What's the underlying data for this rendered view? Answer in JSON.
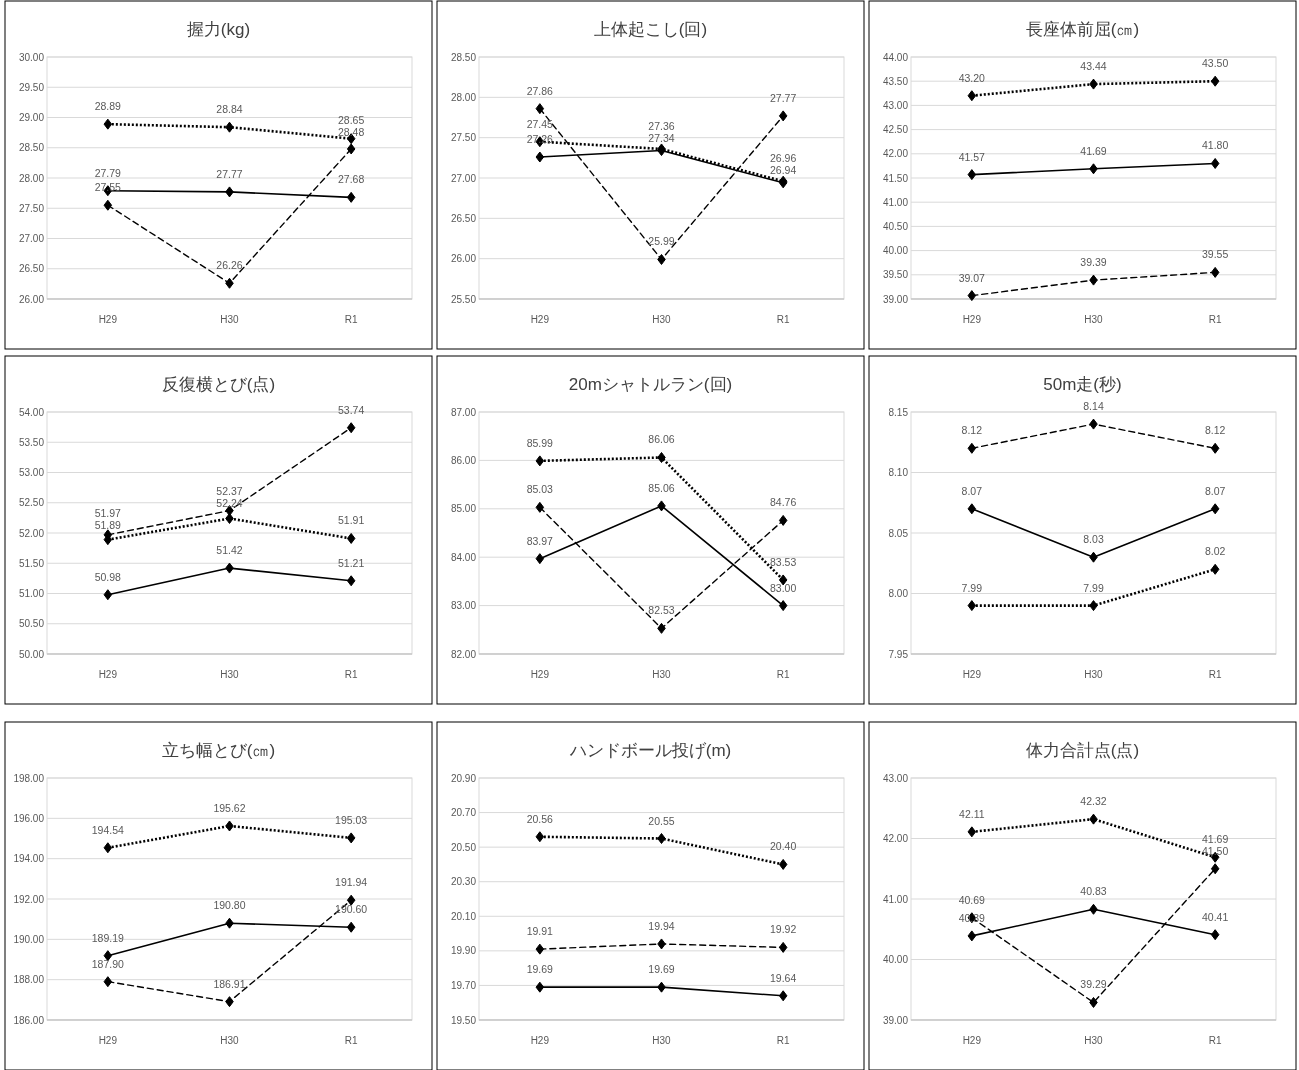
{
  "chart_data": [
    {
      "type": "line",
      "title": "握力(kg)",
      "categories": [
        "H29",
        "H30",
        "R1"
      ],
      "ylim": [
        26,
        30
      ],
      "yticks": [
        {
          "value": 26,
          "label": "26.00"
        },
        {
          "value": 26.5,
          "label": "26.50"
        },
        {
          "value": 27,
          "label": "27.00"
        },
        {
          "value": 27.5,
          "label": "27.50"
        },
        {
          "value": 28,
          "label": "28.00"
        },
        {
          "value": 28.5,
          "label": "28.50"
        },
        {
          "value": 29,
          "label": "29.00"
        },
        {
          "value": 29.5,
          "label": "29.50"
        },
        {
          "value": 30,
          "label": "30.00"
        }
      ],
      "grid": "y",
      "marker": "diamond",
      "series": [
        {
          "color": "#000000",
          "line_style": "solid",
          "values": [
            27.79,
            27.77,
            27.68
          ],
          "value_labels": [
            "27.79",
            "27.77",
            "27.68"
          ]
        },
        {
          "color": "#000000",
          "line_style": "dashed",
          "values": [
            27.55,
            26.26,
            28.48
          ],
          "value_labels": [
            "27.55",
            "26.26",
            "28.48"
          ]
        },
        {
          "color": "#000000",
          "line_style": "dotted",
          "values": [
            28.89,
            28.84,
            28.65
          ],
          "value_labels": [
            "28.89",
            "28.84",
            "28.65"
          ]
        }
      ]
    },
    {
      "type": "line",
      "title": "上体起こし(回)",
      "categories": [
        "H29",
        "H30",
        "R1"
      ],
      "ylim": [
        25.5,
        28.5
      ],
      "yticks": [
        {
          "value": 25.5,
          "label": "25.50"
        },
        {
          "value": 26,
          "label": "26.00"
        },
        {
          "value": 26.5,
          "label": "26.50"
        },
        {
          "value": 27,
          "label": "27.00"
        },
        {
          "value": 27.5,
          "label": "27.50"
        },
        {
          "value": 28,
          "label": "28.00"
        },
        {
          "value": 28.5,
          "label": "28.50"
        }
      ],
      "grid": "y",
      "marker": "diamond",
      "series": [
        {
          "color": "#000000",
          "line_style": "solid",
          "values": [
            27.26,
            27.34,
            26.94
          ],
          "value_labels": [
            "27.26",
            "27.34",
            "26.94"
          ]
        },
        {
          "color": "#000000",
          "line_style": "dashed",
          "values": [
            27.86,
            25.99,
            27.77
          ],
          "value_labels": [
            "27.86",
            "25.99",
            "27.77"
          ]
        },
        {
          "color": "#000000",
          "line_style": "dotted",
          "values": [
            27.45,
            27.36,
            26.96
          ],
          "value_labels": [
            "27.45",
            "27.36",
            "26.96"
          ]
        }
      ]
    },
    {
      "type": "line",
      "title": "長座体前屈(㎝)",
      "categories": [
        "H29",
        "H30",
        "R1"
      ],
      "ylim": [
        39,
        44
      ],
      "yticks": [
        {
          "value": 39,
          "label": "39.00"
        },
        {
          "value": 39.5,
          "label": "39.50"
        },
        {
          "value": 40,
          "label": "40.00"
        },
        {
          "value": 40.5,
          "label": "40.50"
        },
        {
          "value": 41,
          "label": "41.00"
        },
        {
          "value": 41.5,
          "label": "41.50"
        },
        {
          "value": 42,
          "label": "42.00"
        },
        {
          "value": 42.5,
          "label": "42.50"
        },
        {
          "value": 43,
          "label": "43.00"
        },
        {
          "value": 43.5,
          "label": "43.50"
        },
        {
          "value": 44,
          "label": "44.00"
        }
      ],
      "grid": "y",
      "marker": "diamond",
      "series": [
        {
          "color": "#000000",
          "line_style": "solid",
          "values": [
            41.57,
            41.69,
            41.8
          ],
          "value_labels": [
            "41.57",
            "41.69",
            "41.80"
          ]
        },
        {
          "color": "#000000",
          "line_style": "dashed",
          "values": [
            39.07,
            39.39,
            39.55
          ],
          "value_labels": [
            "39.07",
            "39.39",
            "39.55"
          ]
        },
        {
          "color": "#000000",
          "line_style": "dotted",
          "values": [
            43.2,
            43.44,
            43.5
          ],
          "value_labels": [
            "43.20",
            "43.44",
            "43.50"
          ]
        }
      ]
    },
    {
      "type": "line",
      "title": "反復横とび(点)",
      "categories": [
        "H29",
        "H30",
        "R1"
      ],
      "ylim": [
        50,
        54
      ],
      "yticks": [
        {
          "value": 50,
          "label": "50.00"
        },
        {
          "value": 50.5,
          "label": "50.50"
        },
        {
          "value": 51,
          "label": "51.00"
        },
        {
          "value": 51.5,
          "label": "51.50"
        },
        {
          "value": 52,
          "label": "52.00"
        },
        {
          "value": 52.5,
          "label": "52.50"
        },
        {
          "value": 53,
          "label": "53.00"
        },
        {
          "value": 53.5,
          "label": "53.50"
        },
        {
          "value": 54,
          "label": "54.00"
        }
      ],
      "grid": "y",
      "marker": "diamond",
      "series": [
        {
          "color": "#000000",
          "line_style": "solid",
          "values": [
            50.98,
            51.42,
            51.21
          ],
          "value_labels": [
            "50.98",
            "51.42",
            "51.21"
          ]
        },
        {
          "color": "#000000",
          "line_style": "dashed",
          "values": [
            51.97,
            52.37,
            53.74
          ],
          "value_labels": [
            "51.97",
            "52.37",
            "53.74"
          ]
        },
        {
          "color": "#000000",
          "line_style": "dotted",
          "values": [
            51.89,
            52.24,
            51.91
          ],
          "value_labels": [
            "51.89",
            "52.24",
            "51.91"
          ]
        }
      ]
    },
    {
      "type": "line",
      "title": "20mシャトルラン(回)",
      "categories": [
        "H29",
        "H30",
        "R1"
      ],
      "ylim": [
        82,
        87
      ],
      "yticks": [
        {
          "value": 82,
          "label": "82.00"
        },
        {
          "value": 83,
          "label": "83.00"
        },
        {
          "value": 84,
          "label": "84.00"
        },
        {
          "value": 85,
          "label": "85.00"
        },
        {
          "value": 86,
          "label": "86.00"
        },
        {
          "value": 87,
          "label": "87.00"
        }
      ],
      "grid": "y",
      "marker": "diamond",
      "series": [
        {
          "color": "#000000",
          "line_style": "solid",
          "values": [
            83.97,
            85.06,
            83.0
          ],
          "value_labels": [
            "83.97",
            "85.06",
            "83.00"
          ]
        },
        {
          "color": "#000000",
          "line_style": "dashed",
          "values": [
            85.03,
            82.53,
            84.76
          ],
          "value_labels": [
            "85.03",
            "82.53",
            "84.76"
          ]
        },
        {
          "color": "#000000",
          "line_style": "dotted",
          "values": [
            85.99,
            86.06,
            83.53
          ],
          "value_labels": [
            "85.99",
            "86.06",
            "83.53"
          ]
        }
      ]
    },
    {
      "type": "line",
      "title": "50m走(秒)",
      "categories": [
        "H29",
        "H30",
        "R1"
      ],
      "ylim": [
        7.95,
        8.15
      ],
      "yticks": [
        {
          "value": 7.95,
          "label": "7.95"
        },
        {
          "value": 8.0,
          "label": "8.00"
        },
        {
          "value": 8.05,
          "label": "8.05"
        },
        {
          "value": 8.1,
          "label": "8.10"
        },
        {
          "value": 8.15,
          "label": "8.15"
        }
      ],
      "grid": "y",
      "marker": "diamond",
      "series": [
        {
          "color": "#000000",
          "line_style": "solid",
          "values": [
            8.07,
            8.03,
            8.07
          ],
          "value_labels": [
            "8.07",
            "8.03",
            "8.07"
          ]
        },
        {
          "color": "#000000",
          "line_style": "dashed",
          "values": [
            8.12,
            8.14,
            8.12
          ],
          "value_labels": [
            "8.12",
            "8.14",
            "8.12"
          ]
        },
        {
          "color": "#000000",
          "line_style": "dotted",
          "values": [
            7.99,
            7.99,
            8.02
          ],
          "value_labels": [
            "7.99",
            "7.99",
            "8.02"
          ]
        }
      ]
    },
    {
      "type": "line",
      "title": "立ち幅とび(㎝)",
      "categories": [
        "H29",
        "H30",
        "R1"
      ],
      "ylim": [
        186,
        198
      ],
      "yticks": [
        {
          "value": 186,
          "label": "186.00"
        },
        {
          "value": 188,
          "label": "188.00"
        },
        {
          "value": 190,
          "label": "190.00"
        },
        {
          "value": 192,
          "label": "192.00"
        },
        {
          "value": 194,
          "label": "194.00"
        },
        {
          "value": 196,
          "label": "196.00"
        },
        {
          "value": 198,
          "label": "198.00"
        }
      ],
      "grid": "y",
      "marker": "diamond",
      "series": [
        {
          "color": "#000000",
          "line_style": "solid",
          "values": [
            189.19,
            190.8,
            190.6
          ],
          "value_labels": [
            "189.19",
            "190.80",
            "190.60"
          ]
        },
        {
          "color": "#000000",
          "line_style": "dashed",
          "values": [
            187.9,
            186.91,
            191.94
          ],
          "value_labels": [
            "187.90",
            "186.91",
            "191.94"
          ]
        },
        {
          "color": "#000000",
          "line_style": "dotted",
          "values": [
            194.54,
            195.62,
            195.03
          ],
          "value_labels": [
            "194.54",
            "195.62",
            "195.03"
          ]
        }
      ]
    },
    {
      "type": "line",
      "title": "ハンドボール投げ(m)",
      "categories": [
        "H29",
        "H30",
        "R1"
      ],
      "ylim": [
        19.5,
        20.9
      ],
      "yticks": [
        {
          "value": 19.5,
          "label": "19.50"
        },
        {
          "value": 19.7,
          "label": "19.70"
        },
        {
          "value": 19.9,
          "label": "19.90"
        },
        {
          "value": 20.1,
          "label": "20.10"
        },
        {
          "value": 20.3,
          "label": "20.30"
        },
        {
          "value": 20.5,
          "label": "20.50"
        },
        {
          "value": 20.7,
          "label": "20.70"
        },
        {
          "value": 20.9,
          "label": "20.90"
        }
      ],
      "grid": "y",
      "marker": "diamond",
      "series": [
        {
          "color": "#000000",
          "line_style": "solid",
          "values": [
            19.69,
            19.69,
            19.64
          ],
          "value_labels": [
            "19.69",
            "19.69",
            "19.64"
          ]
        },
        {
          "color": "#000000",
          "line_style": "dashed",
          "values": [
            19.91,
            19.94,
            19.92
          ],
          "value_labels": [
            "19.91",
            "19.94",
            "19.92"
          ]
        },
        {
          "color": "#000000",
          "line_style": "dotted",
          "values": [
            20.56,
            20.55,
            20.4
          ],
          "value_labels": [
            "20.56",
            "20.55",
            "20.40"
          ]
        }
      ]
    },
    {
      "type": "line",
      "title": "体力合計点(点)",
      "categories": [
        "H29",
        "H30",
        "R1"
      ],
      "ylim": [
        39,
        43
      ],
      "yticks": [
        {
          "value": 39,
          "label": "39.00"
        },
        {
          "value": 40,
          "label": "40.00"
        },
        {
          "value": 41,
          "label": "41.00"
        },
        {
          "value": 42,
          "label": "42.00"
        },
        {
          "value": 43,
          "label": "43.00"
        }
      ],
      "grid": "y",
      "marker": "diamond",
      "series": [
        {
          "color": "#000000",
          "line_style": "solid",
          "values": [
            40.39,
            40.83,
            40.41
          ],
          "value_labels": [
            "40.39",
            "40.83",
            "40.41"
          ]
        },
        {
          "color": "#000000",
          "line_style": "dashed",
          "values": [
            40.69,
            39.29,
            41.5
          ],
          "value_labels": [
            "40.69",
            "39.29",
            "41.50"
          ]
        },
        {
          "color": "#000000",
          "line_style": "dotted",
          "values": [
            42.11,
            42.32,
            41.69
          ],
          "value_labels": [
            "42.11",
            "42.32",
            "41.69"
          ]
        }
      ]
    }
  ]
}
